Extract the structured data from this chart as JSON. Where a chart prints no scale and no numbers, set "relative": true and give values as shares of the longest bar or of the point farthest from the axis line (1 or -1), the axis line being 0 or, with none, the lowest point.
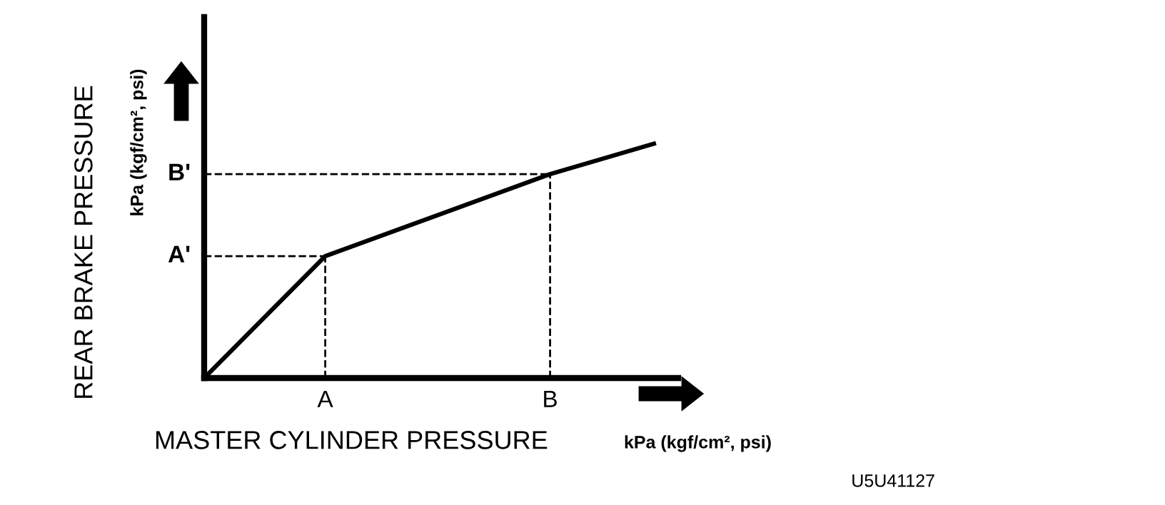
{
  "chart_data": {
    "type": "line",
    "relative": true,
    "xlabel": "MASTER CYLINDER PRESSURE",
    "ylabel": "REAR BRAKE PRESSURE",
    "categories": [
      null,
      null,
      null,
      null,
      null,
      null,
      null,
      "A",
      null,
      null,
      null,
      null,
      null,
      null,
      null,
      null,
      null,
      null,
      null,
      null,
      "B",
      null,
      null,
      null,
      null,
      null,
      null
    ],
    "series": [
      {
        "color": "#000000",
        "values": [
          0,
          null,
          null,
          null,
          null,
          null,
          null,
          0.52,
          null,
          null,
          null,
          null,
          null,
          null,
          null,
          null,
          null,
          null,
          null,
          null,
          0.87,
          null,
          null,
          null,
          null,
          null,
          1
        ]
      }
    ],
    "ref_lines": [
      {
        "axis": "x",
        "value": "A",
        "line_style": "dashed",
        "color": "#000000"
      },
      {
        "axis": "x",
        "value": "B",
        "line_style": "dashed",
        "color": "#000000"
      },
      {
        "axis": "y",
        "value": 0.52,
        "label": "A'",
        "line_style": "dashed",
        "color": "#000000"
      },
      {
        "axis": "y",
        "value": 0.87,
        "label": "B'",
        "line_style": "dashed",
        "color": "#000000"
      }
    ],
    "annotations": [
      "kPa (kgf/cm², psi)",
      "kPa (kgf/cm², psi)",
      "U5U41127"
    ],
    "grid": false,
    "legend": false,
    "marker": "none",
    "line_style": "solid"
  }
}
